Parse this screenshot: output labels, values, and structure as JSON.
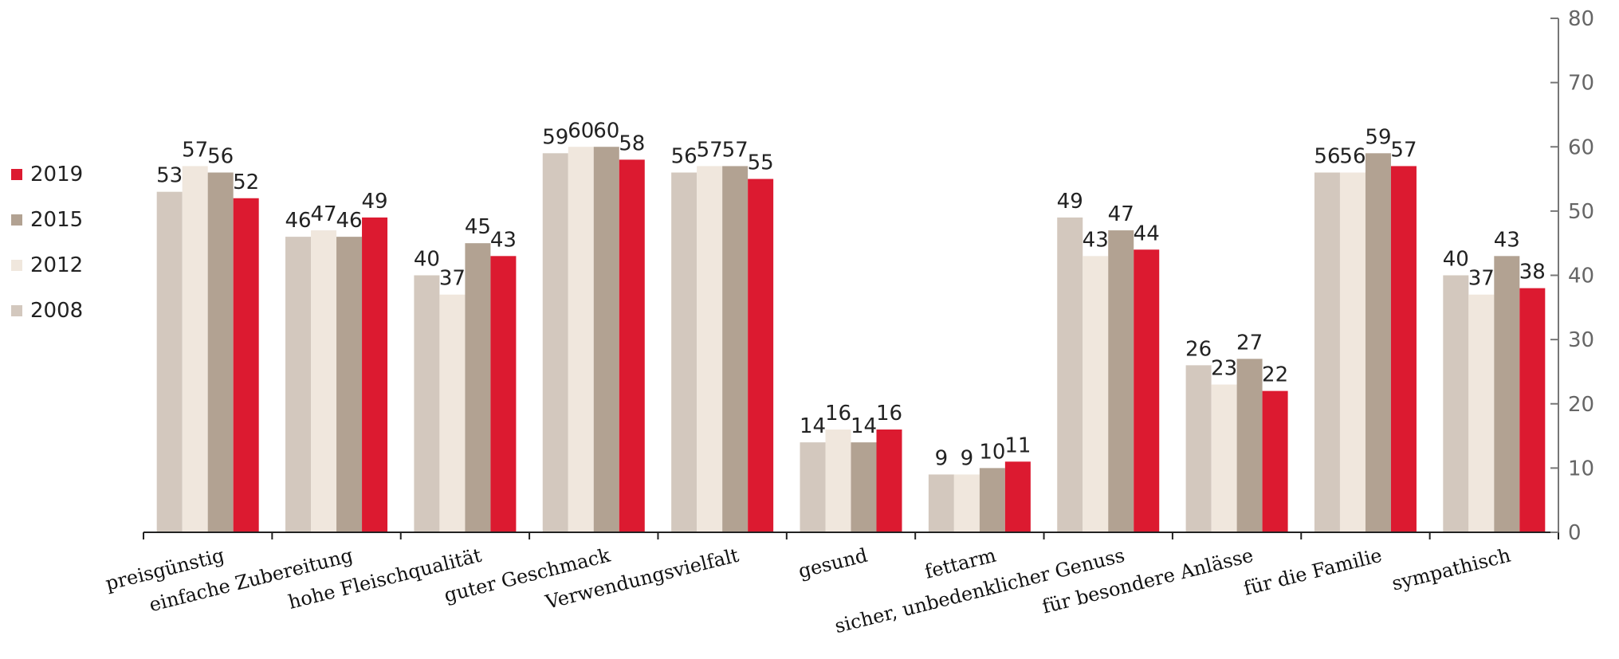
{
  "chart_data": {
    "type": "bar",
    "categories": [
      "preisgünstig",
      "einfache Zubereitung",
      "hohe Fleischqualität",
      "guter Geschmack",
      "Verwendungsvielfalt",
      "gesund",
      "fettarm",
      "sicher, unbedenklicher Genuss",
      "für besondere Anlässe",
      "für die Familie",
      "sympathisch"
    ],
    "series": [
      {
        "name": "2008",
        "color": "#d3c8be",
        "values": [
          53,
          46,
          40,
          59,
          56,
          14,
          9,
          49,
          26,
          56,
          40
        ]
      },
      {
        "name": "2012",
        "color": "#f0e7dd",
        "values": [
          57,
          47,
          37,
          60,
          57,
          16,
          9,
          43,
          23,
          56,
          37
        ]
      },
      {
        "name": "2015",
        "color": "#b2a292",
        "values": [
          56,
          46,
          45,
          60,
          57,
          14,
          10,
          47,
          27,
          59,
          43
        ]
      },
      {
        "name": "2019",
        "color": "#dc1a30",
        "values": [
          52,
          49,
          43,
          58,
          55,
          16,
          11,
          44,
          22,
          57,
          38
        ]
      }
    ],
    "legend_order": [
      "2019",
      "2015",
      "2012",
      "2008"
    ],
    "legend_position": "left",
    "ylim": [
      0,
      80
    ],
    "yticks": [
      "0",
      "10",
      "20",
      "30",
      "40",
      "50",
      "60",
      "70",
      "80"
    ],
    "y_axis_side": "right",
    "grid": false,
    "title": "",
    "xlabel": "",
    "ylabel": ""
  }
}
